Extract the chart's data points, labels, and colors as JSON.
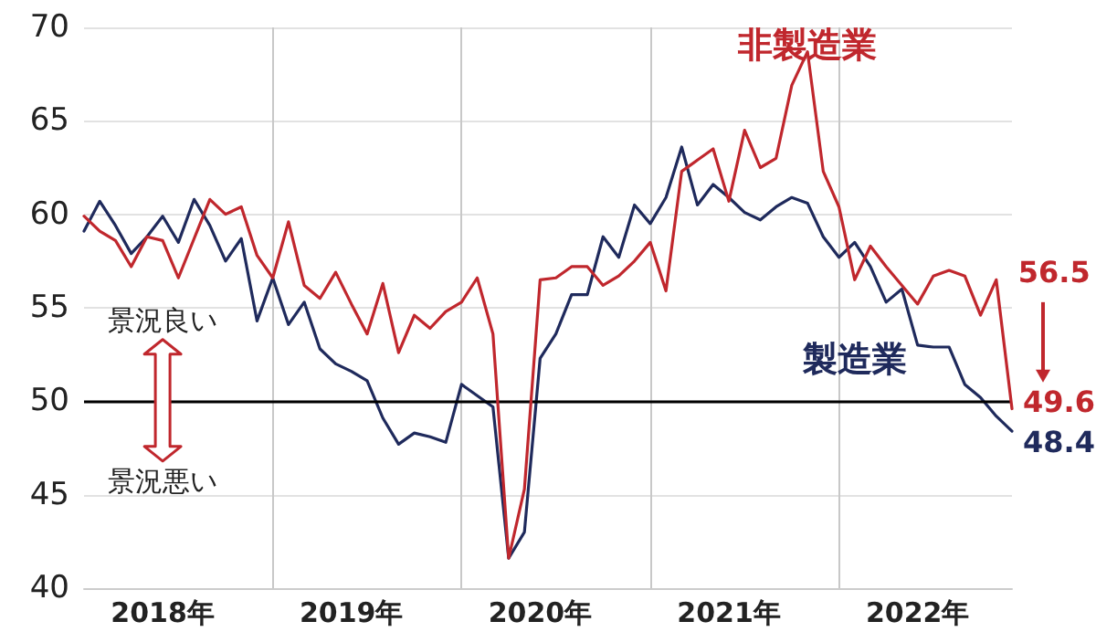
{
  "chart_data": {
    "type": "line",
    "categories": [
      null,
      null,
      null,
      null,
      null,
      "2018年",
      null,
      null,
      null,
      null,
      null,
      null,
      null,
      null,
      null,
      null,
      null,
      "2019年",
      null,
      null,
      null,
      null,
      null,
      null,
      null,
      null,
      null,
      null,
      null,
      "2020年",
      null,
      null,
      null,
      null,
      null,
      null,
      null,
      null,
      null,
      null,
      null,
      "2021年",
      null,
      null,
      null,
      null,
      null,
      null,
      null,
      null,
      null,
      null,
      null,
      "2022年",
      null,
      null,
      null,
      null,
      null,
      null
    ],
    "series": [
      {
        "name": "非製造業",
        "color": "#c0272d",
        "values": [
          59.9,
          59.1,
          58.6,
          57.2,
          58.8,
          58.6,
          56.6,
          58.7,
          60.8,
          60.0,
          60.4,
          57.8,
          56.6,
          59.6,
          56.2,
          55.5,
          56.9,
          55.2,
          53.6,
          56.3,
          52.6,
          54.6,
          53.9,
          54.8,
          55.3,
          56.6,
          53.6,
          41.6,
          45.3,
          56.5,
          56.6,
          57.2,
          57.2,
          56.2,
          56.7,
          57.5,
          58.5,
          55.9,
          62.3,
          62.9,
          63.5,
          60.7,
          64.5,
          62.5,
          63.0,
          66.9,
          68.7,
          62.3,
          60.4,
          56.5,
          58.3,
          57.2,
          56.2,
          55.2,
          56.7,
          57.0,
          56.7,
          54.6,
          56.5,
          49.6
        ],
        "value_labels": [
          null,
          null,
          null,
          null,
          null,
          null,
          null,
          null,
          null,
          null,
          null,
          null,
          null,
          null,
          null,
          null,
          null,
          null,
          null,
          null,
          null,
          null,
          null,
          null,
          null,
          null,
          null,
          null,
          null,
          null,
          null,
          null,
          null,
          null,
          null,
          null,
          null,
          null,
          null,
          null,
          null,
          null,
          null,
          null,
          null,
          null,
          null,
          null,
          null,
          null,
          null,
          null,
          null,
          null,
          null,
          null,
          null,
          null,
          "56.5",
          "49.6"
        ]
      },
      {
        "name": "製造業",
        "color": "#1f2a5c",
        "values": [
          59.1,
          60.7,
          59.4,
          57.9,
          58.8,
          59.9,
          58.5,
          60.8,
          59.4,
          57.5,
          58.7,
          54.3,
          56.6,
          54.1,
          55.3,
          52.8,
          52.0,
          51.6,
          51.1,
          49.1,
          47.7,
          48.3,
          48.1,
          47.8,
          50.9,
          50.3,
          49.7,
          41.6,
          43.0,
          52.3,
          53.6,
          55.7,
          55.7,
          58.8,
          57.7,
          60.5,
          59.5,
          60.9,
          63.6,
          60.5,
          61.6,
          60.9,
          60.1,
          59.7,
          60.4,
          60.9,
          60.6,
          58.8,
          57.7,
          58.5,
          57.2,
          55.3,
          56.0,
          53.0,
          52.9,
          52.9,
          50.9,
          50.2,
          49.2,
          48.4
        ],
        "value_labels": [
          null,
          null,
          null,
          null,
          null,
          null,
          null,
          null,
          null,
          null,
          null,
          null,
          null,
          null,
          null,
          null,
          null,
          null,
          null,
          null,
          null,
          null,
          null,
          null,
          null,
          null,
          null,
          null,
          null,
          null,
          null,
          null,
          null,
          null,
          null,
          null,
          null,
          null,
          null,
          null,
          null,
          null,
          null,
          null,
          null,
          null,
          null,
          null,
          null,
          null,
          null,
          null,
          null,
          null,
          null,
          null,
          null,
          null,
          null,
          "48.4"
        ]
      }
    ],
    "ylim": [
      40,
      70
    ],
    "yticks": [
      40,
      45,
      50,
      55,
      60,
      65,
      70
    ],
    "grid": true,
    "marker": "none",
    "line_style": "solid",
    "ref_lines": [
      {
        "axis": "y",
        "value": 50,
        "color": "#000000"
      }
    ],
    "annotations": [
      "景況良い",
      "景況悪い"
    ]
  }
}
